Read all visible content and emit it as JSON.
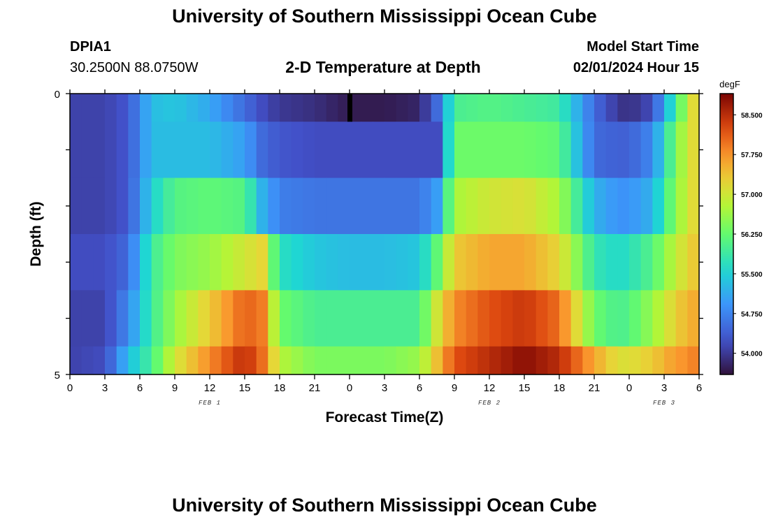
{
  "header": {
    "title": "University of Southern Mississippi Ocean Cube",
    "station_id": "DPIA1",
    "coords": "30.2500N  88.0750W",
    "subtitle": "2-D Temperature at Depth",
    "start_label": "Model Start Time",
    "start_time": "02/01/2024 Hour 15"
  },
  "footer": {
    "title": "University of Southern Mississippi Ocean Cube"
  },
  "chart_data": {
    "type": "heatmap",
    "title": "2-D Temperature at Depth",
    "xlabel": "Forecast Time(Z)",
    "ylabel": "Depth (ft)",
    "x_ticks": [
      "0",
      "3",
      "6",
      "9",
      "12",
      "15",
      "18",
      "21",
      "0",
      "3",
      "6",
      "9",
      "12",
      "15",
      "18",
      "21",
      "0",
      "3",
      "6"
    ],
    "date_labels": [
      {
        "label": "FEB 1",
        "hour": 12
      },
      {
        "label": "FEB 2",
        "hour": 36
      },
      {
        "label": "FEB 3",
        "hour": 51
      }
    ],
    "y_ticks": [
      "0",
      "5"
    ],
    "ylim": [
      0,
      5
    ],
    "x_range_hours": [
      0,
      54
    ],
    "colorbar": {
      "unit": "degF",
      "min": 53.6,
      "max": 58.9,
      "ticks": [
        "58.500",
        "57.750",
        "57.000",
        "56.250",
        "55.500",
        "54.750",
        "54.000"
      ],
      "tick_values": [
        58.5,
        57.75,
        57.0,
        56.25,
        55.5,
        54.75,
        54.0
      ]
    },
    "anchors_hours": [
      0,
      3,
      5,
      7,
      9,
      12,
      15,
      16.5,
      18,
      21,
      24,
      27,
      30,
      31.5,
      33,
      36,
      39,
      42,
      45,
      47,
      48,
      50,
      51.5,
      53,
      54
    ],
    "rows": [
      {
        "depth_band": "0.0-0.5 ft",
        "values": [
          54.1,
          54.1,
          54.3,
          55.3,
          55.4,
          55.1,
          54.5,
          54.2,
          54.0,
          53.9,
          53.7,
          53.7,
          53.8,
          54.5,
          56.0,
          56.1,
          56.0,
          55.9,
          54.5,
          54.0,
          53.9,
          54.2,
          55.5,
          56.8,
          57.5
        ]
      },
      {
        "depth_band": "0.5-1.5 ft",
        "values": [
          54.1,
          54.1,
          54.3,
          55.3,
          55.3,
          55.3,
          55.0,
          54.5,
          54.3,
          54.2,
          54.2,
          54.2,
          54.2,
          54.2,
          56.3,
          56.3,
          56.3,
          56.2,
          54.5,
          54.4,
          54.4,
          54.8,
          56.0,
          57.0,
          57.3
        ]
      },
      {
        "depth_band": "1.5-2.5 ft",
        "values": [
          54.1,
          54.1,
          54.3,
          55.5,
          56.1,
          56.2,
          56.1,
          55.2,
          54.7,
          54.6,
          54.6,
          54.6,
          54.6,
          55.0,
          56.7,
          57.0,
          57.1,
          56.7,
          55.2,
          54.9,
          54.9,
          55.2,
          56.2,
          57.0,
          57.3
        ]
      },
      {
        "depth_band": "2.5-3.5 ft",
        "values": [
          54.2,
          54.2,
          54.5,
          55.9,
          56.4,
          56.6,
          57.0,
          57.2,
          55.7,
          55.4,
          55.3,
          55.3,
          55.4,
          56.2,
          57.3,
          57.6,
          57.6,
          57.2,
          55.8,
          55.6,
          55.7,
          56.1,
          56.7,
          57.2,
          57.4
        ]
      },
      {
        "depth_band": "3.5-4.5 ft",
        "values": [
          54.1,
          54.1,
          54.8,
          55.9,
          56.6,
          57.3,
          58.1,
          57.9,
          56.3,
          56.0,
          56.0,
          56.0,
          56.0,
          57.0,
          57.8,
          58.2,
          58.4,
          58.0,
          56.3,
          56.0,
          56.1,
          56.6,
          57.1,
          57.5,
          57.6
        ]
      },
      {
        "depth_band": "4.5-5.0 ft",
        "values": [
          54.1,
          54.2,
          55.3,
          56.0,
          57.0,
          57.8,
          58.5,
          58.0,
          56.8,
          56.4,
          56.4,
          56.4,
          56.6,
          57.4,
          58.2,
          58.5,
          58.8,
          58.5,
          57.6,
          57.1,
          57.1,
          57.3,
          57.6,
          57.8,
          57.9
        ]
      }
    ],
    "row_depth_bounds": [
      0,
      0.5,
      1.5,
      2.5,
      3.5,
      4.5,
      5.0
    ],
    "marker_hour": 24
  }
}
